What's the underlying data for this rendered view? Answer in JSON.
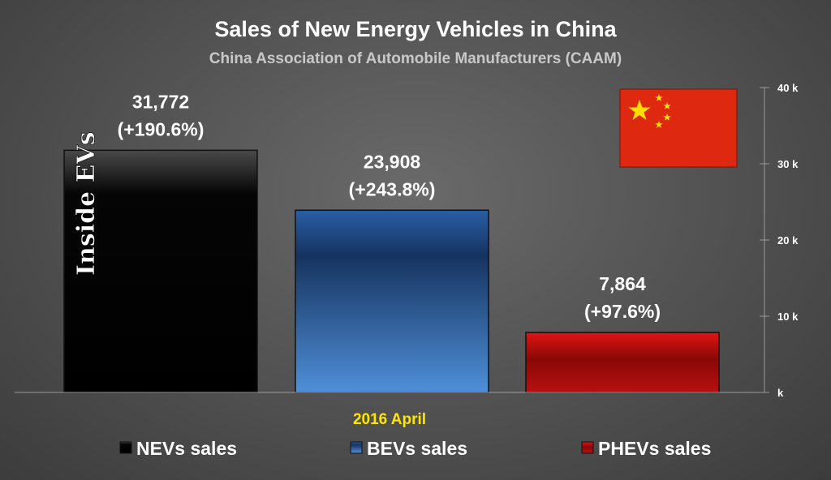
{
  "chart_data": {
    "type": "bar",
    "title": "Sales of New Energy Vehicles in China",
    "subtitle": "China Association of Automobile Manufacturers (CAAM)",
    "categories": [
      "2016 April"
    ],
    "series": [
      {
        "name": "NEVs sales",
        "values": [
          31772
        ],
        "value_label": "31,772",
        "change_label": "(+190.6%)",
        "color": "#000000"
      },
      {
        "name": "BEVs sales",
        "values": [
          23908
        ],
        "value_label": "23,908",
        "change_label": "(+243.8%)",
        "color": "#2f64a8"
      },
      {
        "name": "PHEVs sales",
        "values": [
          7864
        ],
        "value_label": "7,864",
        "change_label": "(+97.6%)",
        "color": "#b01010"
      }
    ],
    "y_ticks": [
      {
        "value": 0,
        "label": "k"
      },
      {
        "value": 10000,
        "label": "10 k"
      },
      {
        "value": 20000,
        "label": "20 k"
      },
      {
        "value": 30000,
        "label": "30 k"
      },
      {
        "value": 40000,
        "label": "40 k"
      }
    ],
    "ylim": [
      0,
      40000
    ],
    "y_axis_side": "right",
    "grid": false,
    "legend": "bottom"
  },
  "watermark": "Inside EVs",
  "flag_icon": "china-flag-icon"
}
